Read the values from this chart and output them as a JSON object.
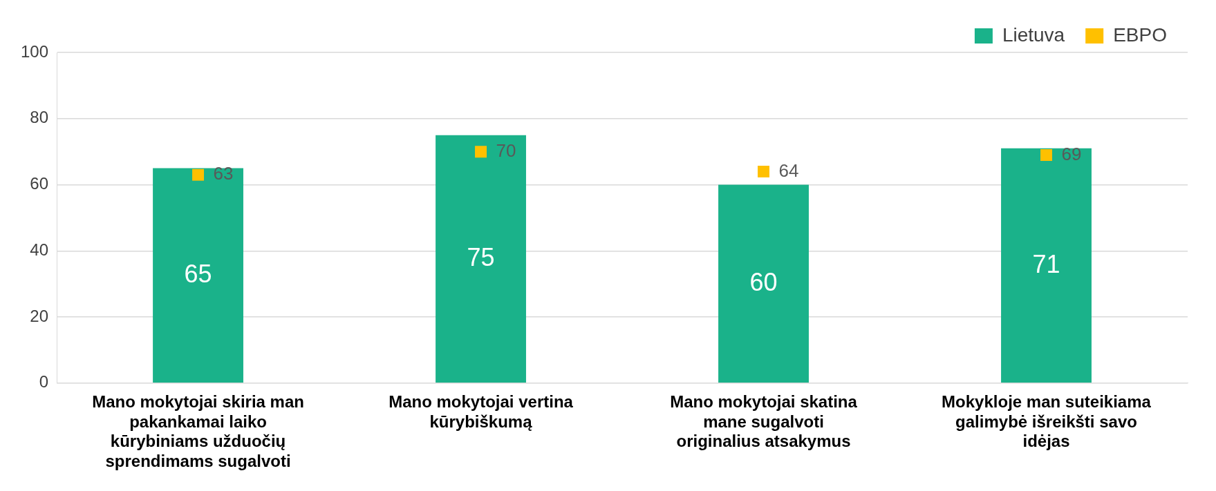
{
  "chart_data": {
    "type": "bar",
    "categories": [
      "Mano mokytojai skiria man pakankamai laiko kūrybiniams užduočių sprendimams sugalvoti",
      "Mano mokytojai vertina kūrybiškumą",
      "Mano mokytojai skatina mane sugalvoti originalius atsakymus",
      "Mokykloje man suteikiama galimybė išreikšti savo idėjas"
    ],
    "series": [
      {
        "name": "Lietuva",
        "color": "#1ab28a",
        "values": [
          65,
          75,
          60,
          71
        ]
      },
      {
        "name": "EBPO",
        "type": "scatter",
        "marker": "square",
        "color": "#ffc000",
        "x": [
          "Mano mokytojai skiria man pakankamai laiko kūrybiniams užduočių sprendimams sugalvoti",
          "Mano mokytojai vertina kūrybiškumą",
          "Mano mokytojai skatina mane sugalvoti originalius atsakymus",
          "Mokykloje man suteikiama galimybė išreikšti savo idėjas"
        ],
        "values": [
          63,
          70,
          64,
          69
        ]
      }
    ],
    "ylim": [
      0,
      100
    ],
    "yticks": [
      0,
      20,
      40,
      60,
      80,
      100
    ],
    "grid": "y",
    "legend": "top right",
    "data_labels": true
  }
}
